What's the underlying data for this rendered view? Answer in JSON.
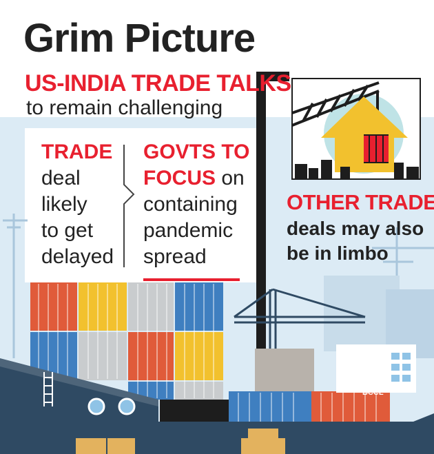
{
  "title": "Grim Picture",
  "subtitle_red": "US-INDIA TRADE TALKS",
  "subtitle_rest": "to remain challenging",
  "left_box": {
    "heading_red": "TRADE",
    "lines": [
      "deal",
      "likely",
      "to get",
      "delayed"
    ]
  },
  "middle_box": {
    "line1_red": "GOVTS TO",
    "line2_red": "FOCUS",
    "line2_rest": " on",
    "lines": [
      "containing",
      "pandemic",
      "spread"
    ]
  },
  "right_box": {
    "heading_red": "OTHER TRADE",
    "lines": [
      "deals may also",
      "be in limbo"
    ]
  },
  "credit": "BCCL",
  "colors": {
    "accent_red": "#e8202f",
    "text_dark": "#222222",
    "ship_navy": "#2f4a63",
    "background_blue": "#dcebf5",
    "arrow_yellow": "#f2c12e",
    "sky_teal": "#bfe3e6"
  },
  "icons": [
    "crane-icon",
    "house-arrow-icon",
    "cargo-ship-icon",
    "container-stack-icon"
  ]
}
